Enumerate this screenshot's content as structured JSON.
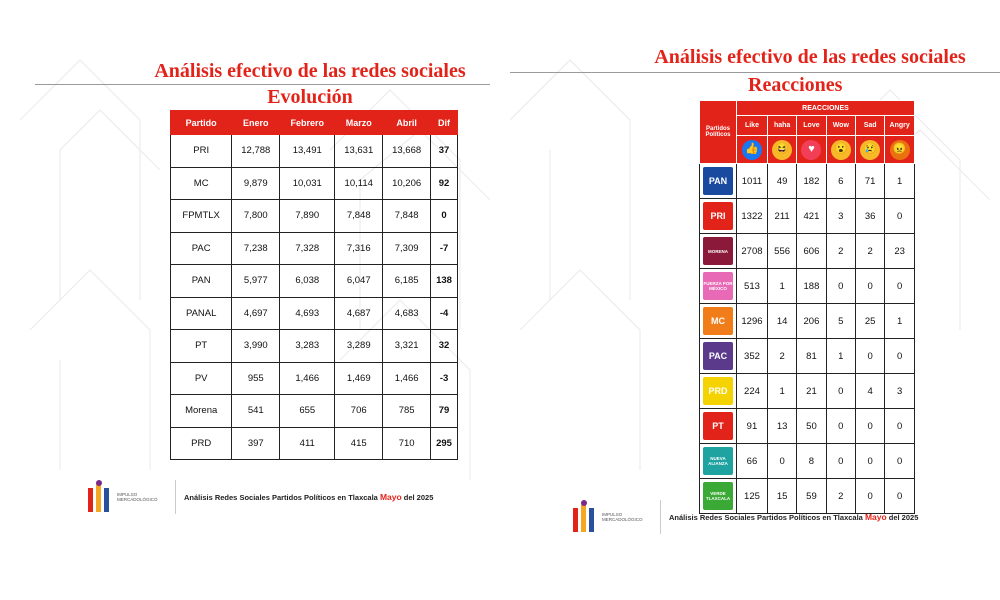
{
  "left": {
    "title": "Análisis efectivo de las redes sociales",
    "subtitle": "Evolución",
    "table": {
      "headers": [
        "Partido",
        "Enero",
        "Febrero",
        "Marzo",
        "Abril",
        "Dif"
      ],
      "rows": [
        [
          "PRI",
          "12,788",
          "13,491",
          "13,631",
          "13,668",
          "37"
        ],
        [
          "MC",
          "9,879",
          "10,031",
          "10,114",
          "10,206",
          "92"
        ],
        [
          "FPMTLX",
          "7,800",
          "7,890",
          "7,848",
          "7,848",
          "0"
        ],
        [
          "PAC",
          "7,238",
          "7,328",
          "7,316",
          "7,309",
          "-7"
        ],
        [
          "PAN",
          "5,977",
          "6,038",
          "6,047",
          "6,185",
          "138"
        ],
        [
          "PANAL",
          "4,697",
          "4,693",
          "4,687",
          "4,683",
          "-4"
        ],
        [
          "PT",
          "3,990",
          "3,283",
          "3,289",
          "3,321",
          "32"
        ],
        [
          "PV",
          "955",
          "1,466",
          "1,469",
          "1,466",
          "-3"
        ],
        [
          "Morena",
          "541",
          "655",
          "706",
          "785",
          "79"
        ],
        [
          "PRD",
          "397",
          "411",
          "415",
          "710",
          "295"
        ]
      ]
    },
    "footer": {
      "brand": "IMPULSO MERCADOLÓGICO",
      "text": "Análisis Redes Sociales  Partidos Políticos en Tlaxcala",
      "month": "Mayo",
      "year": "del 2025"
    }
  },
  "right": {
    "title": "Análisis efectivo de las redes sociales",
    "subtitle": "Reacciones",
    "table": {
      "group_header": "REACCIONES",
      "corner_label": "Partidos Políticos",
      "columns": [
        "Like",
        "haha",
        "Love",
        "Wow",
        "Sad",
        "Angry"
      ],
      "emoji_icons": [
        {
          "name": "like",
          "glyph": "👍",
          "color": "#1877f2"
        },
        {
          "name": "haha",
          "glyph": "😆",
          "color": "#f7b928"
        },
        {
          "name": "love",
          "glyph": "♥",
          "color": "#f33e58"
        },
        {
          "name": "wow",
          "glyph": "😮",
          "color": "#f7b928"
        },
        {
          "name": "sad",
          "glyph": "😢",
          "color": "#f7b928"
        },
        {
          "name": "angry",
          "glyph": "😠",
          "color": "#e9710f"
        }
      ],
      "rows": [
        {
          "logo": "PAN",
          "logo_color": "#1a4aa0",
          "values": [
            "1011",
            "49",
            "182",
            "6",
            "71",
            "1"
          ]
        },
        {
          "logo": "PRI",
          "logo_color": "#e2231a",
          "values": [
            "1322",
            "211",
            "421",
            "3",
            "36",
            "0"
          ]
        },
        {
          "logo": "MORENA",
          "logo_color": "#8b1a3a",
          "values": [
            "2708",
            "556",
            "606",
            "2",
            "2",
            "23"
          ]
        },
        {
          "logo": "FUERZA POR MÉXICO",
          "logo_color": "#e86ab6",
          "values": [
            "513",
            "1",
            "188",
            "0",
            "0",
            "0"
          ]
        },
        {
          "logo": "MC",
          "logo_color": "#f07d1a",
          "values": [
            "1296",
            "14",
            "206",
            "5",
            "25",
            "1"
          ]
        },
        {
          "logo": "PAC",
          "logo_color": "#5b3a8c",
          "values": [
            "352",
            "2",
            "81",
            "1",
            "0",
            "0"
          ]
        },
        {
          "logo": "PRD",
          "logo_color": "#f5d300",
          "values": [
            "224",
            "1",
            "21",
            "0",
            "4",
            "3"
          ]
        },
        {
          "logo": "PT",
          "logo_color": "#e2231a",
          "values": [
            "91",
            "13",
            "50",
            "0",
            "0",
            "0"
          ]
        },
        {
          "logo": "NUEVA ALIANZA",
          "logo_color": "#1fa3a0",
          "values": [
            "66",
            "0",
            "8",
            "0",
            "0",
            "0"
          ]
        },
        {
          "logo": "VERDE TLAXCALA",
          "logo_color": "#3aa935",
          "values": [
            "125",
            "15",
            "59",
            "2",
            "0",
            "0"
          ]
        }
      ]
    },
    "footer": {
      "brand": "IMPULSO MERCADOLÓGICO",
      "text": "Análisis Redes Sociales  Partidos Políticos en Tlaxcala",
      "month": "Mayo",
      "year": "del 2025"
    }
  }
}
